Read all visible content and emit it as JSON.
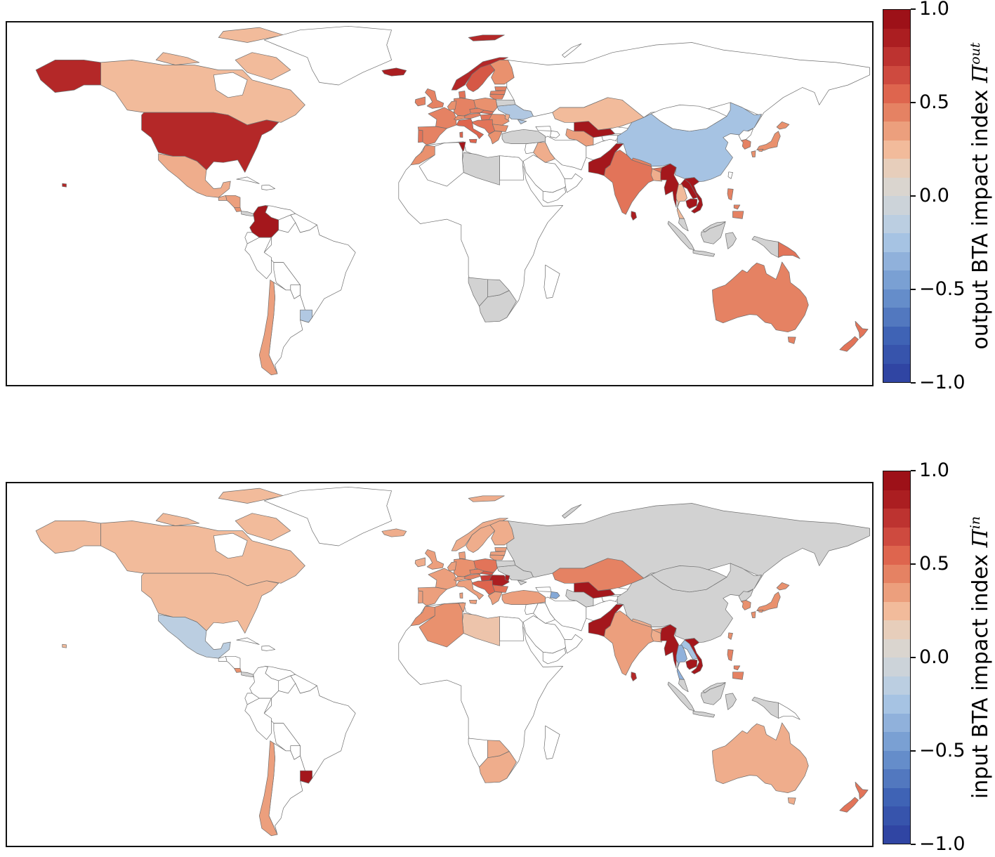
{
  "figure": {
    "background": "#ffffff",
    "panels": [
      {
        "name": "output-map",
        "label_prefix": "output BTA impact index ",
        "symbol": "Π",
        "superscript": "out",
        "ticks": [
          {
            "label": "1.0",
            "value": 1.0
          },
          {
            "label": "0.5",
            "value": 0.5
          },
          {
            "label": "0.0",
            "value": 0.0
          },
          {
            "label": "−0.5",
            "value": -0.5
          },
          {
            "label": "−1.0",
            "value": -1.0
          }
        ]
      },
      {
        "name": "input-map",
        "label_prefix": "input BTA impact index ",
        "symbol": "Π",
        "superscript": "in",
        "ticks": [
          {
            "label": "1.0",
            "value": 1.0
          },
          {
            "label": "0.5",
            "value": 0.5
          },
          {
            "label": "0.0",
            "value": 0.0
          },
          {
            "label": "−0.5",
            "value": -0.5
          },
          {
            "label": "−1.0",
            "value": -1.0
          }
        ]
      }
    ],
    "colors": {
      "dark_red": "#960a13",
      "mid_red": "#de654e",
      "light_peach": "#f2bb9b",
      "zero_gray": "#d2d2d2",
      "light_blue": "#a6c3e3",
      "mid_blue": "#6f97cf",
      "dark_blue": "#2c3e9e",
      "no_data_land": "#ffffff",
      "border": "#6e6e6e",
      "frame": "#111111"
    }
  },
  "chart_data": [
    {
      "type": "heatmap",
      "subtype": "world_choropleth",
      "title": "output BTA impact index Π^out",
      "colorbar": {
        "min": -1.0,
        "max": 1.0,
        "ticks": [
          1.0,
          0.5,
          0.0,
          -0.5,
          -1.0
        ],
        "colormap": "discrete red-gray-blue (RdBu reversed), 20 bands",
        "position": "right"
      },
      "map_extent": {
        "lon": [
          -180,
          180
        ],
        "lat": [
          -60,
          85
        ]
      },
      "no_data_color": "#ffffff",
      "values": {
        "usa": 0.8,
        "canada": 0.25,
        "greenland": null,
        "mexico": 0.3,
        "guatemala": 0.3,
        "honduras": 0.35,
        "costa_rica": 0.4,
        "panama": 0.0,
        "cuba": null,
        "hispaniola": null,
        "colombia": 0.9,
        "venezuela": null,
        "guyana": null,
        "ecuador": null,
        "peru": null,
        "brazil": null,
        "bolivia": null,
        "paraguay": null,
        "chile": 0.35,
        "argentina": null,
        "uruguay": -0.2,
        "iceland": 0.85,
        "ireland": 0.45,
        "uk": 0.45,
        "norway": 0.8,
        "sweden": 0.6,
        "finland": 0.4,
        "denmark": 0.5,
        "estonia": 0.45,
        "latvia": 0.45,
        "lithuania": 0.45,
        "poland": 0.4,
        "germany": 0.45,
        "netherlands": 0.4,
        "france": 0.45,
        "portugal": 0.5,
        "spain": 0.45,
        "switzerland": 0.4,
        "austria": 0.45,
        "czechia": 0.45,
        "slovakia": 0.5,
        "hungary": 0.5,
        "romania": 0.4,
        "bulgaria": 0.4,
        "serbia": 0.5,
        "greece": 0.4,
        "italy": 0.55,
        "ukraine": -0.2,
        "belarus": 0.0,
        "moldova": 0.3,
        "russia": null,
        "morocco": 0.4,
        "algeria": null,
        "tunisia": 0.9,
        "libya": 0.0,
        "egypt": null,
        "south_africa": 0.0,
        "botswana": 0.0,
        "namibia": 0.0,
        "madagascar": null,
        "turkey": 0.0,
        "syria": null,
        "iraq": 0.3,
        "iran": null,
        "saudi": null,
        "yemen": null,
        "oman": null,
        "georgia": null,
        "azerbaijan": null,
        "kazakhstan": 0.25,
        "uzbekistan": 0.9,
        "turkmenistan": 0.35,
        "kyrgyzstan": null,
        "afghanistan": null,
        "pakistan": 0.9,
        "india": 0.5,
        "nepal": 0.45,
        "bangladesh": 0.3,
        "sri_lanka": 0.85,
        "myanmar": 0.9,
        "thailand": 0.25,
        "laos": 0.9,
        "cambodia": 0.9,
        "vietnam": 0.9,
        "malaysia": 0.0,
        "indonesia": 0.0,
        "philippines": 0.45,
        "png": 0.5,
        "china": -0.25,
        "mongolia": null,
        "north_korea": null,
        "south_korea": 0.45,
        "japan": 0.4,
        "taiwan": null,
        "australia": 0.45,
        "new_zealand": 0.5
      }
    },
    {
      "type": "heatmap",
      "subtype": "world_choropleth",
      "title": "input BTA impact index Π^in",
      "colorbar": {
        "min": -1.0,
        "max": 1.0,
        "ticks": [
          1.0,
          0.5,
          0.0,
          -0.5,
          -1.0
        ],
        "colormap": "discrete red-gray-blue (RdBu reversed), 20 bands",
        "position": "right"
      },
      "map_extent": {
        "lon": [
          -180,
          180
        ],
        "lat": [
          -60,
          85
        ]
      },
      "no_data_color": "#ffffff",
      "values": {
        "usa": 0.25,
        "canada": 0.25,
        "greenland": null,
        "mexico": -0.15,
        "guatemala": null,
        "honduras": null,
        "costa_rica": 0.4,
        "panama": 0.0,
        "cuba": null,
        "hispaniola": null,
        "colombia": null,
        "venezuela": null,
        "guyana": null,
        "ecuador": null,
        "peru": null,
        "brazil": null,
        "bolivia": null,
        "paraguay": null,
        "chile": 0.35,
        "argentina": null,
        "uruguay": 0.9,
        "iceland": 0.3,
        "ireland": 0.3,
        "uk": 0.35,
        "norway": 0.3,
        "sweden": 0.3,
        "finland": 0.3,
        "denmark": 0.35,
        "estonia": 0.35,
        "latvia": 0.35,
        "lithuania": 0.35,
        "poland": 0.5,
        "germany": 0.4,
        "netherlands": 0.35,
        "france": 0.35,
        "portugal": 0.35,
        "spain": 0.35,
        "switzerland": 0.35,
        "austria": 0.45,
        "czechia": 0.45,
        "slovakia": 0.6,
        "hungary": 0.7,
        "romania": 0.85,
        "bulgaria": 0.5,
        "serbia": 0.55,
        "greece": 0.35,
        "italy": 0.35,
        "ukraine": 0.0,
        "belarus": 0.0,
        "moldova": 0.85,
        "russia": 0.0,
        "morocco": 0.4,
        "algeria": 0.4,
        "tunisia": 0.35,
        "libya": 0.2,
        "egypt": null,
        "south_africa": 0.3,
        "botswana": 0.3,
        "namibia": null,
        "madagascar": null,
        "turkey": 0.35,
        "syria": null,
        "iraq": null,
        "iran": null,
        "saudi": null,
        "yemen": null,
        "oman": null,
        "georgia": null,
        "azerbaijan": -0.4,
        "kazakhstan": 0.45,
        "uzbekistan": 0.9,
        "turkmenistan": 0.0,
        "kyrgyzstan": null,
        "afghanistan": null,
        "pakistan": 0.9,
        "india": 0.35,
        "nepal": 0.3,
        "bangladesh": 0.3,
        "sri_lanka": 0.8,
        "myanmar": 0.9,
        "thailand": -0.35,
        "laos": -0.25,
        "cambodia": 0.9,
        "vietnam": 0.9,
        "malaysia": 0.0,
        "indonesia": 0.0,
        "philippines": 0.45,
        "png": null,
        "china": 0.0,
        "mongolia": 0.0,
        "north_korea": 0.0,
        "south_korea": 0.4,
        "japan": 0.4,
        "taiwan": 0.4,
        "australia": 0.3,
        "new_zealand": 0.5
      }
    }
  ]
}
